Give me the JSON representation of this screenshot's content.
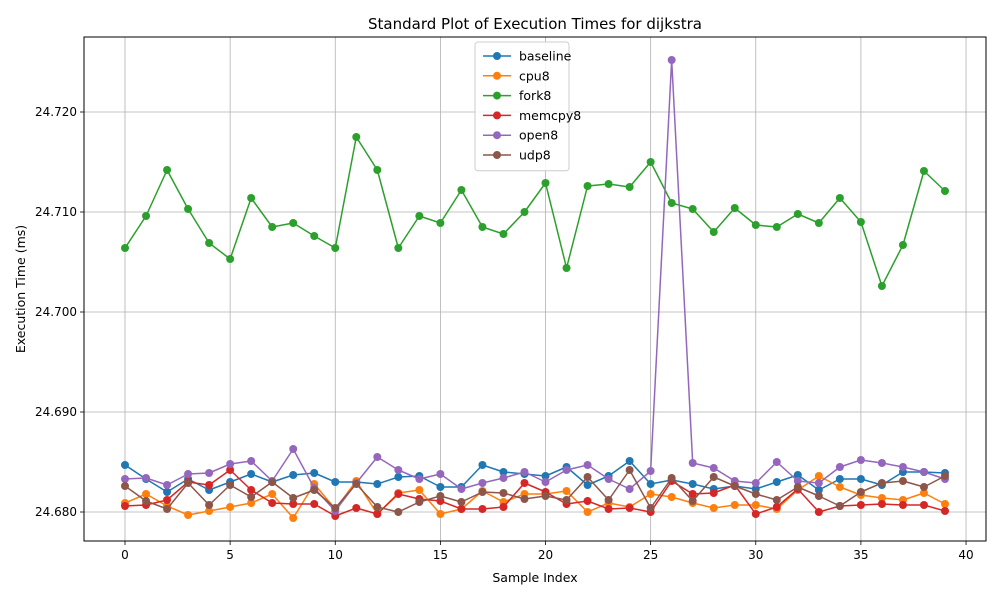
{
  "chart_data": {
    "type": "line",
    "title": "Standard Plot of Execution Times for dijkstra",
    "xlabel": "Sample Index",
    "ylabel": "Execution Time (ms)",
    "xlim": [
      -1.95,
      40.95
    ],
    "ylim": [
      24.6771,
      24.7275
    ],
    "x_ticks": [
      0,
      5,
      10,
      15,
      20,
      25,
      30,
      35,
      40
    ],
    "y_ticks": [
      24.68,
      24.69,
      24.7,
      24.71,
      24.72
    ],
    "y_tick_labels": [
      "24.680",
      "24.690",
      "24.700",
      "24.710",
      "24.720"
    ],
    "grid": true,
    "legend_position": "top-center",
    "x": [
      0,
      1,
      2,
      3,
      4,
      5,
      6,
      7,
      8,
      9,
      10,
      11,
      12,
      13,
      14,
      15,
      16,
      17,
      18,
      19,
      20,
      21,
      22,
      23,
      24,
      25,
      26,
      27,
      28,
      29,
      30,
      31,
      32,
      33,
      34,
      35,
      36,
      37,
      38,
      39
    ],
    "series": [
      {
        "name": "baseline",
        "color": "#1f77b4",
        "values": [
          24.6847,
          24.6833,
          24.682,
          24.6833,
          24.6822,
          24.683,
          24.6838,
          24.683,
          24.6837,
          24.6839,
          24.683,
          24.683,
          24.6828,
          24.6835,
          24.6836,
          24.6825,
          24.6825,
          24.6847,
          24.684,
          24.6838,
          24.6836,
          24.6845,
          24.6827,
          24.6836,
          24.6851,
          24.6828,
          24.6832,
          24.6828,
          24.6823,
          24.6826,
          24.6823,
          24.683,
          24.6837,
          24.6822,
          24.6833,
          24.6833,
          24.6827,
          24.684,
          24.684,
          24.6839
        ]
      },
      {
        "name": "cpu8",
        "color": "#ff7f0e",
        "values": [
          24.6809,
          24.6818,
          24.6806,
          24.6797,
          24.6801,
          24.6805,
          24.6809,
          24.6818,
          24.6794,
          24.6828,
          24.6803,
          24.6831,
          24.6798,
          24.6819,
          24.6822,
          24.6798,
          24.6803,
          24.6821,
          24.681,
          24.6818,
          24.6818,
          24.6821,
          24.68,
          24.6809,
          24.6805,
          24.6818,
          24.6815,
          24.6809,
          24.6804,
          24.6807,
          24.6807,
          24.6803,
          24.6822,
          24.6836,
          24.6825,
          24.6817,
          24.6814,
          24.6812,
          24.6819,
          24.6808
        ]
      },
      {
        "name": "fork8",
        "color": "#2ca02c",
        "values": [
          24.7064,
          24.7096,
          24.7142,
          24.7103,
          24.7069,
          24.7053,
          24.7114,
          24.7085,
          24.7089,
          24.7076,
          24.7064,
          24.7175,
          24.7142,
          24.7064,
          24.7096,
          24.7089,
          24.7122,
          24.7085,
          24.7078,
          24.71,
          24.7129,
          24.7044,
          24.7126,
          24.7128,
          24.7125,
          24.715,
          24.7109,
          24.7103,
          24.708,
          24.7104,
          24.7087,
          24.7085,
          24.7098,
          24.7089,
          24.7114,
          24.709,
          24.7026,
          24.7067,
          24.7141,
          24.7121
        ]
      },
      {
        "name": "memcpy8",
        "color": "#d62728",
        "values": [
          24.6806,
          24.6807,
          24.6812,
          24.683,
          24.6827,
          24.6842,
          24.6822,
          24.6809,
          24.6808,
          24.6808,
          24.6796,
          24.6804,
          24.6798,
          24.6818,
          24.6813,
          24.6811,
          24.6803,
          24.6803,
          24.6805,
          24.6829,
          24.682,
          24.6808,
          24.6811,
          24.6803,
          24.6804,
          24.68,
          24.6831,
          24.6818,
          24.6819,
          24.6827,
          24.6798,
          24.6805,
          24.6823,
          24.68,
          24.6806,
          24.6807,
          24.6808,
          24.6807,
          24.6807,
          24.6801
        ]
      },
      {
        "name": "open8",
        "color": "#9467bd",
        "values": [
          24.6833,
          24.6834,
          24.6827,
          24.6838,
          24.6839,
          24.6848,
          24.6851,
          24.6831,
          24.6863,
          24.6824,
          24.6801,
          24.6829,
          24.6855,
          24.6842,
          24.6833,
          24.6838,
          24.6823,
          24.6829,
          24.6834,
          24.684,
          24.683,
          24.6842,
          24.6847,
          24.6833,
          24.6823,
          24.6841,
          24.7252,
          24.6849,
          24.6844,
          24.6831,
          24.6829,
          24.685,
          24.6831,
          24.6829,
          24.6845,
          24.6852,
          24.6849,
          24.6845,
          24.684,
          24.6833
        ]
      },
      {
        "name": "udp8",
        "color": "#8c564b",
        "values": [
          24.6826,
          24.6811,
          24.6803,
          24.6829,
          24.6807,
          24.6827,
          24.6815,
          24.683,
          24.6814,
          24.6822,
          24.6804,
          24.6828,
          24.6805,
          24.68,
          24.681,
          24.6816,
          24.681,
          24.682,
          24.6819,
          24.6813,
          24.6816,
          24.6812,
          24.6835,
          24.6812,
          24.6842,
          24.6804,
          24.6834,
          24.6811,
          24.6835,
          24.6826,
          24.6818,
          24.6812,
          24.6825,
          24.6816,
          24.6806,
          24.682,
          24.6829,
          24.6831,
          24.6825,
          24.6836
        ]
      }
    ]
  }
}
